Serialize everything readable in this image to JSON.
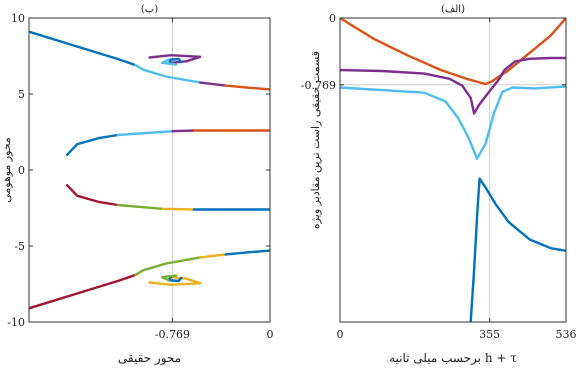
{
  "chart_data": [
    {
      "type": "line",
      "panel_label": "(ب)",
      "xlabel": "محور حقیقی",
      "ylabel": "محور موهومی",
      "xlim": [
        -1.9,
        0
      ],
      "ylim": [
        -10,
        10
      ],
      "xticks": [
        {
          "value": -0.769,
          "label": "-0.769"
        },
        {
          "value": 0,
          "label": "0"
        }
      ],
      "yticks": [
        {
          "value": 10,
          "label": "10"
        },
        {
          "value": 5,
          "label": "5"
        },
        {
          "value": 0,
          "label": "0"
        },
        {
          "value": -5,
          "label": "-5"
        },
        {
          "value": -10,
          "label": "-10"
        }
      ],
      "vline": -0.769,
      "grid": false,
      "series": [
        {
          "color": "#0072BD",
          "points": [
            [
              -1.9,
              9.1
            ],
            [
              -1.55,
              8.2
            ],
            [
              -1.2,
              7.3
            ],
            [
              -1.06,
              6.9
            ]
          ]
        },
        {
          "color": "#4DBEEE",
          "points": [
            [
              -1.06,
              6.9
            ],
            [
              -1.0,
              6.6
            ],
            [
              -0.82,
              6.15
            ],
            [
              -0.55,
              5.75
            ]
          ]
        },
        {
          "color": "#7E2F8E",
          "points": [
            [
              -0.55,
              5.75
            ],
            [
              -0.35,
              5.55
            ]
          ]
        },
        {
          "color": "#D95319",
          "points": [
            [
              -0.35,
              5.55
            ],
            [
              -0.15,
              5.4
            ],
            [
              0,
              5.3
            ]
          ]
        },
        {
          "color": "#7E2F8E",
          "points": [
            [
              -0.95,
              7.4
            ],
            [
              -0.78,
              7.55
            ],
            [
              -0.55,
              7.45
            ],
            [
              -0.66,
              7.15
            ],
            [
              -0.78,
              7.05
            ]
          ]
        },
        {
          "color": "#0072BD",
          "points": [
            [
              -0.78,
              7.05
            ],
            [
              -0.8,
              7.25
            ],
            [
              -0.72,
              7.3
            ],
            [
              -0.7,
              7.1
            ]
          ]
        },
        {
          "color": "#4DBEEE",
          "points": [
            [
              -0.8,
              7.25
            ],
            [
              -0.85,
              7.05
            ],
            [
              -0.74,
              6.95
            ]
          ]
        },
        {
          "color": "#0072BD",
          "points": [
            [
              -1.6,
              1.0
            ],
            [
              -1.52,
              1.7
            ],
            [
              -1.35,
              2.1
            ],
            [
              -1.2,
              2.3
            ]
          ]
        },
        {
          "color": "#4DBEEE",
          "points": [
            [
              -1.2,
              2.3
            ],
            [
              -0.769,
              2.55
            ]
          ]
        },
        {
          "color": "#7E2F8E",
          "points": [
            [
              -0.769,
              2.55
            ],
            [
              -0.6,
              2.6
            ]
          ]
        },
        {
          "color": "#D95319",
          "points": [
            [
              -0.6,
              2.6
            ],
            [
              0,
              2.6
            ]
          ]
        },
        {
          "color": "#A2142F",
          "points": [
            [
              -1.6,
              -1.0
            ],
            [
              -1.52,
              -1.7
            ],
            [
              -1.35,
              -2.1
            ],
            [
              -1.2,
              -2.3
            ]
          ]
        },
        {
          "color": "#77AC30",
          "points": [
            [
              -1.2,
              -2.3
            ],
            [
              -0.85,
              -2.55
            ]
          ]
        },
        {
          "color": "#EDB120",
          "points": [
            [
              -0.85,
              -2.55
            ],
            [
              -0.6,
              -2.6
            ]
          ]
        },
        {
          "color": "#0072BD",
          "points": [
            [
              -0.6,
              -2.6
            ],
            [
              0,
              -2.6
            ]
          ]
        },
        {
          "color": "#A2142F",
          "points": [
            [
              -1.9,
              -9.1
            ],
            [
              -1.55,
              -8.2
            ],
            [
              -1.2,
              -7.3
            ],
            [
              -1.06,
              -6.9
            ]
          ]
        },
        {
          "color": "#77AC30",
          "points": [
            [
              -1.06,
              -6.9
            ],
            [
              -1.0,
              -6.6
            ],
            [
              -0.82,
              -6.15
            ],
            [
              -0.55,
              -5.75
            ]
          ]
        },
        {
          "color": "#EDB120",
          "points": [
            [
              -0.55,
              -5.75
            ],
            [
              -0.35,
              -5.55
            ]
          ]
        },
        {
          "color": "#0072BD",
          "points": [
            [
              -0.35,
              -5.55
            ],
            [
              -0.15,
              -5.4
            ],
            [
              0,
              -5.3
            ]
          ]
        },
        {
          "color": "#EDB120",
          "points": [
            [
              -0.95,
              -7.4
            ],
            [
              -0.78,
              -7.55
            ],
            [
              -0.55,
              -7.45
            ],
            [
              -0.66,
              -7.15
            ],
            [
              -0.78,
              -7.05
            ]
          ]
        },
        {
          "color": "#0072BD",
          "points": [
            [
              -0.78,
              -7.05
            ],
            [
              -0.8,
              -7.25
            ],
            [
              -0.72,
              -7.3
            ],
            [
              -0.7,
              -7.1
            ]
          ]
        },
        {
          "color": "#77AC30",
          "points": [
            [
              -0.8,
              -7.25
            ],
            [
              -0.85,
              -7.05
            ],
            [
              -0.74,
              -6.95
            ]
          ]
        }
      ]
    },
    {
      "type": "line",
      "panel_label": "(الف)",
      "xlabel": "h + τ برحسب میلی ثانیه",
      "ylabel": "قسمت حقیقی راست ترین مقادیر ویژه",
      "xlim": [
        0,
        536
      ],
      "ylim": [
        -3.5,
        0
      ],
      "xticks": [
        {
          "value": 0,
          "label": "0"
        },
        {
          "value": 355,
          "label": "355"
        },
        {
          "value": 536,
          "label": "536"
        }
      ],
      "yticks": [
        {
          "value": 0,
          "label": "0"
        },
        {
          "value": -0.769,
          "label": "-0.769"
        }
      ],
      "vline": 355,
      "hline": -0.769,
      "grid": false,
      "series": [
        {
          "color": "#D95319",
          "points": [
            [
              0,
              0
            ],
            [
              80,
              -0.24
            ],
            [
              160,
              -0.43
            ],
            [
              240,
              -0.6
            ],
            [
              300,
              -0.7
            ],
            [
              345,
              -0.76
            ],
            [
              360,
              -0.73
            ],
            [
              400,
              -0.6
            ],
            [
              460,
              -0.36
            ],
            [
              500,
              -0.2
            ],
            [
              536,
              0
            ]
          ]
        },
        {
          "color": "#7E2F8E",
          "points": [
            [
              0,
              -0.6
            ],
            [
              100,
              -0.61
            ],
            [
              200,
              -0.64
            ],
            [
              260,
              -0.7
            ],
            [
              290,
              -0.78
            ],
            [
              310,
              -0.92
            ],
            [
              318,
              -1.1
            ],
            [
              330,
              -1.0
            ],
            [
              350,
              -0.87
            ],
            [
              375,
              -0.72
            ],
            [
              390,
              -0.6
            ],
            [
              415,
              -0.5
            ],
            [
              450,
              -0.47
            ],
            [
              500,
              -0.46
            ],
            [
              536,
              -0.46
            ]
          ]
        },
        {
          "color": "#4DBEEE",
          "points": [
            [
              0,
              -0.8
            ],
            [
              100,
              -0.83
            ],
            [
              200,
              -0.86
            ],
            [
              250,
              -0.96
            ],
            [
              280,
              -1.15
            ],
            [
              305,
              -1.38
            ],
            [
              325,
              -1.62
            ],
            [
              345,
              -1.45
            ],
            [
              365,
              -1.1
            ],
            [
              385,
              -0.85
            ],
            [
              410,
              -0.8
            ],
            [
              460,
              -0.81
            ],
            [
              536,
              -0.79
            ]
          ]
        },
        {
          "color": "#0072BD",
          "points": [
            [
              310,
              -3.5
            ],
            [
              318,
              -2.9
            ],
            [
              326,
              -2.2
            ],
            [
              331,
              -1.85
            ],
            [
              345,
              -1.95
            ],
            [
              370,
              -2.15
            ],
            [
              400,
              -2.35
            ],
            [
              450,
              -2.55
            ],
            [
              500,
              -2.65
            ],
            [
              536,
              -2.68
            ]
          ]
        }
      ]
    }
  ]
}
